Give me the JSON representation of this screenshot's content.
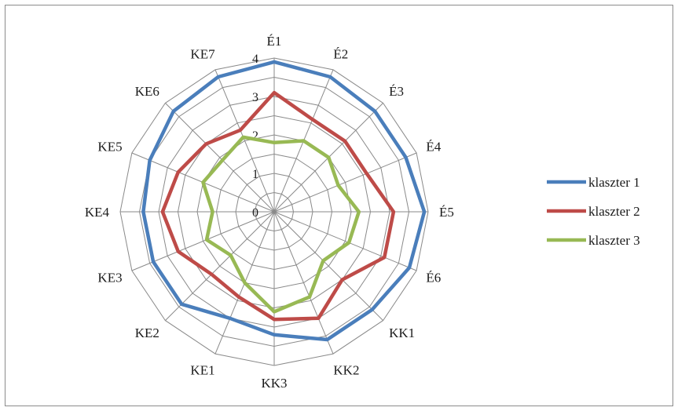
{
  "chart_data": {
    "type": "radar",
    "categories": [
      "É1",
      "É2",
      "É3",
      "É4",
      "É5",
      "É6",
      "KK1",
      "KK2",
      "KK3",
      "KE1",
      "KE2",
      "KE3",
      "KE4",
      "KE5",
      "KE6",
      "KE7"
    ],
    "r_ticks": [
      "0",
      "1",
      "2",
      "3",
      "4"
    ],
    "rlim": [
      0,
      4
    ],
    "grid": true,
    "legend_position": "right",
    "series": [
      {
        "name": "klaszter 1",
        "color": "#4a7ebb",
        "values": [
          3.9,
          3.8,
          3.7,
          3.7,
          3.9,
          3.8,
          3.6,
          3.6,
          3.2,
          3.0,
          3.4,
          3.4,
          3.4,
          3.5,
          3.7,
          3.8
        ]
      },
      {
        "name": "klaszter 2",
        "color": "#be4b48",
        "values": [
          3.1,
          2.6,
          2.6,
          2.6,
          3.1,
          3.1,
          2.5,
          3.0,
          2.8,
          2.4,
          2.3,
          2.7,
          2.9,
          2.7,
          2.5,
          2.3
        ]
      },
      {
        "name": "klaszter 3",
        "color": "#98b954",
        "values": [
          1.8,
          2.0,
          2.0,
          1.8,
          2.2,
          2.1,
          1.8,
          2.4,
          2.6,
          2.0,
          1.6,
          1.9,
          1.6,
          2.0,
          1.9,
          2.1
        ]
      }
    ]
  }
}
